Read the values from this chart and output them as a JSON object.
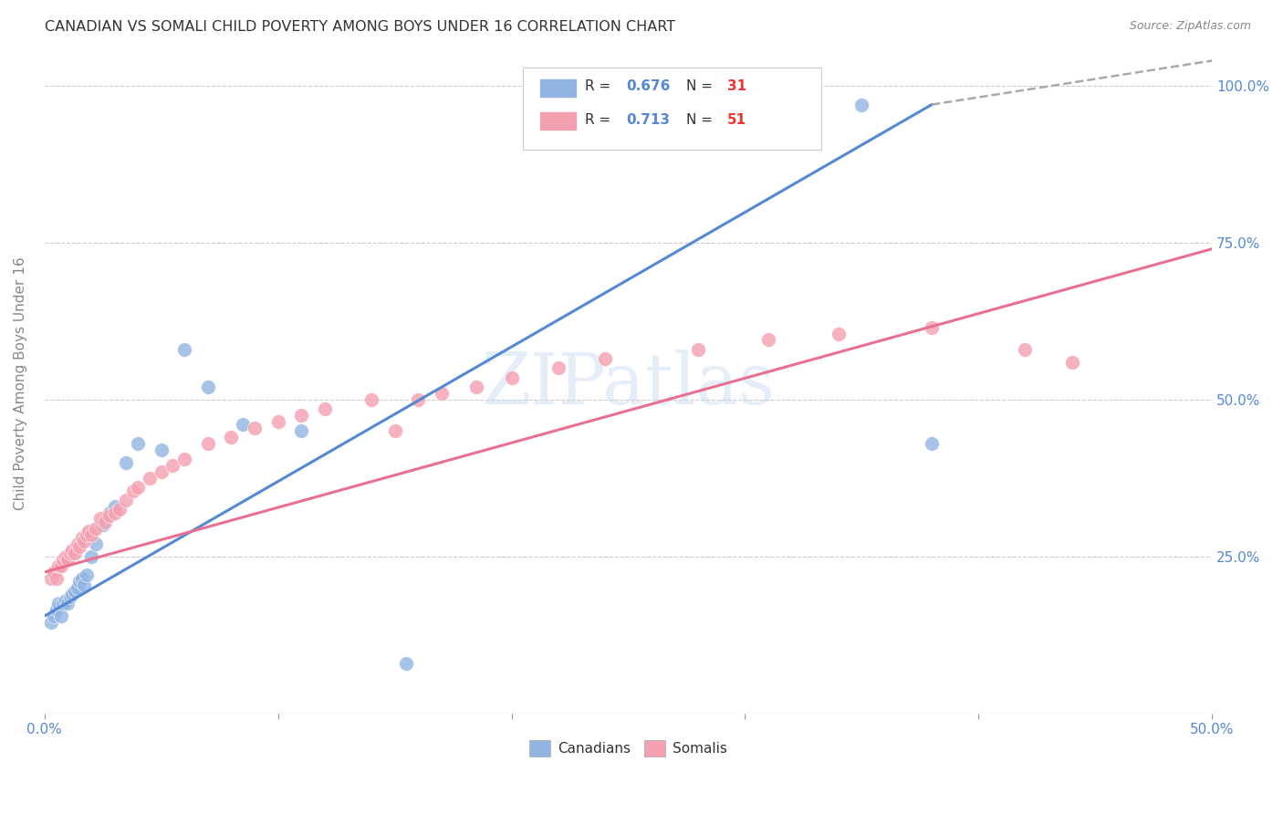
{
  "title": "CANADIAN VS SOMALI CHILD POVERTY AMONG BOYS UNDER 16 CORRELATION CHART",
  "source": "Source: ZipAtlas.com",
  "ylabel": "Child Poverty Among Boys Under 16",
  "watermark": "ZIPatlas",
  "xlim": [
    0.0,
    0.5
  ],
  "ylim": [
    0.0,
    1.05
  ],
  "xtick_positions": [
    0.0,
    0.1,
    0.2,
    0.3,
    0.4,
    0.5
  ],
  "xtick_labels": [
    "0.0%",
    "",
    "",
    "",
    "",
    "50.0%"
  ],
  "ytick_positions": [
    0.0,
    0.25,
    0.5,
    0.75,
    1.0
  ],
  "ytick_labels_right": [
    "",
    "25.0%",
    "50.0%",
    "75.0%",
    "100.0%"
  ],
  "canadian_R": "0.676",
  "canadian_N": "31",
  "somali_R": "0.713",
  "somali_N": "51",
  "canadian_color": "#92b4e3",
  "somali_color": "#f4a0b0",
  "canadian_line_color": "#5588d4",
  "somali_line_color": "#e87090",
  "title_color": "#333333",
  "axis_label_color": "#5588d4",
  "legend_R_color": "#5588d4",
  "legend_N_color": "#ee3333",
  "background_color": "#ffffff",
  "grid_color": "#cccccc",
  "can_x": [
    0.003,
    0.004,
    0.005,
    0.006,
    0.007,
    0.008,
    0.009,
    0.01,
    0.011,
    0.012,
    0.013,
    0.014,
    0.015,
    0.016,
    0.017,
    0.018,
    0.02,
    0.022,
    0.025,
    0.028,
    0.03,
    0.035,
    0.04,
    0.05,
    0.06,
    0.07,
    0.085,
    0.11,
    0.155,
    0.35,
    0.38
  ],
  "can_y": [
    0.145,
    0.155,
    0.165,
    0.175,
    0.155,
    0.175,
    0.18,
    0.175,
    0.185,
    0.19,
    0.195,
    0.2,
    0.21,
    0.215,
    0.205,
    0.22,
    0.25,
    0.27,
    0.3,
    0.32,
    0.33,
    0.4,
    0.43,
    0.42,
    0.58,
    0.52,
    0.46,
    0.45,
    0.08,
    0.97,
    0.43
  ],
  "som_x": [
    0.003,
    0.004,
    0.005,
    0.006,
    0.007,
    0.008,
    0.009,
    0.01,
    0.011,
    0.012,
    0.013,
    0.014,
    0.015,
    0.016,
    0.017,
    0.018,
    0.019,
    0.02,
    0.022,
    0.024,
    0.026,
    0.028,
    0.03,
    0.032,
    0.035,
    0.038,
    0.04,
    0.045,
    0.05,
    0.055,
    0.06,
    0.07,
    0.08,
    0.09,
    0.1,
    0.11,
    0.12,
    0.14,
    0.15,
    0.16,
    0.17,
    0.185,
    0.2,
    0.22,
    0.24,
    0.28,
    0.31,
    0.34,
    0.38,
    0.42,
    0.44
  ],
  "som_y": [
    0.215,
    0.225,
    0.215,
    0.235,
    0.235,
    0.245,
    0.25,
    0.245,
    0.255,
    0.26,
    0.255,
    0.27,
    0.265,
    0.28,
    0.275,
    0.285,
    0.29,
    0.285,
    0.295,
    0.31,
    0.305,
    0.315,
    0.32,
    0.325,
    0.34,
    0.355,
    0.36,
    0.375,
    0.385,
    0.395,
    0.405,
    0.43,
    0.44,
    0.455,
    0.465,
    0.475,
    0.485,
    0.5,
    0.45,
    0.5,
    0.51,
    0.52,
    0.535,
    0.55,
    0.565,
    0.58,
    0.595,
    0.605,
    0.615,
    0.58,
    0.56
  ],
  "can_line_x0": 0.0,
  "can_line_y0": 0.155,
  "can_line_x1": 0.38,
  "can_line_y1": 0.97,
  "can_line_dash_x0": 0.38,
  "can_line_dash_y0": 0.97,
  "can_line_dash_x1": 0.5,
  "can_line_dash_y1": 1.04,
  "som_line_x0": 0.0,
  "som_line_y0": 0.225,
  "som_line_x1": 0.5,
  "som_line_y1": 0.74
}
